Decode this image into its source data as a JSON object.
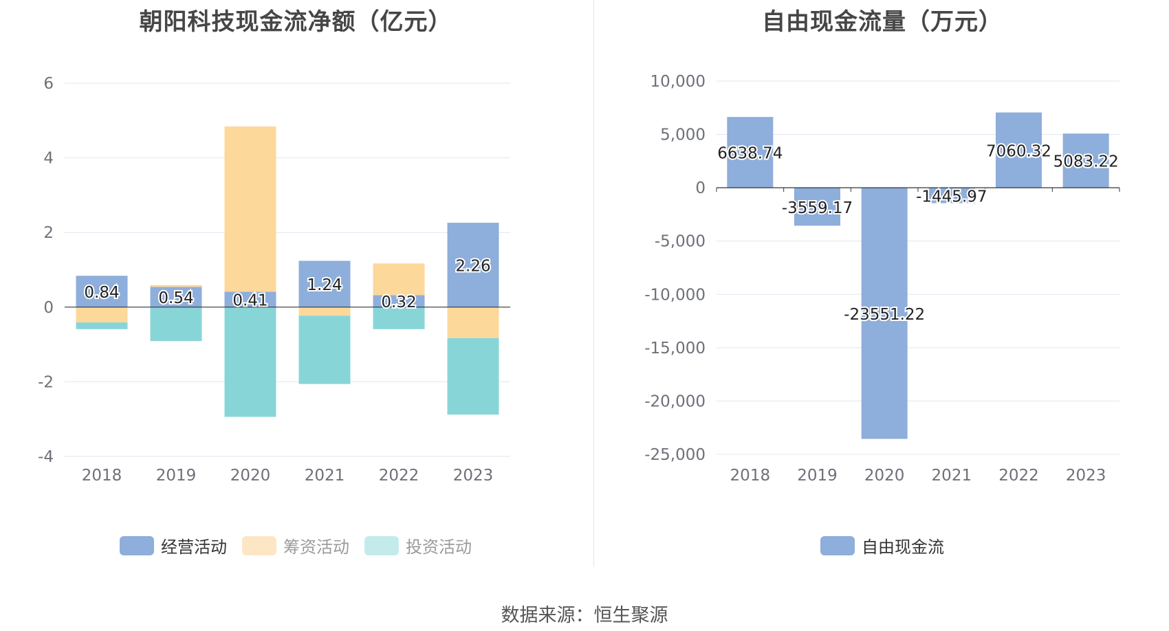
{
  "left": {
    "title": "朝阳科技现金流净额（亿元）",
    "legend": [
      {
        "label": "经营活动",
        "color": "#8eaedb"
      },
      {
        "label": "筹资活动",
        "color": "#fdd89b"
      },
      {
        "label": "投资活动",
        "color": "#88d5d8"
      }
    ]
  },
  "right": {
    "title": "自由现金流量（万元）",
    "legend": [
      {
        "label": "自由现金流",
        "color": "#8eaedb"
      }
    ]
  },
  "source": "数据来源：恒生聚源",
  "chart_data": [
    {
      "type": "bar",
      "stacked": true,
      "title": "朝阳科技现金流净额（亿元）",
      "categories": [
        "2018",
        "2019",
        "2020",
        "2021",
        "2022",
        "2023"
      ],
      "ylim": [
        -4,
        6
      ],
      "yticks": [
        "6",
        "4",
        "2",
        "0",
        "-2",
        "-4"
      ],
      "grid": true,
      "legend_position": "bottom",
      "series": [
        {
          "name": "经营活动",
          "color": "#8eaedb",
          "values": [
            0.84,
            0.54,
            0.41,
            1.24,
            0.32,
            2.26
          ],
          "labels": [
            "0.84",
            "0.54",
            "0.41",
            "1.24",
            "0.32",
            "2.26"
          ]
        },
        {
          "name": "筹资活动",
          "color": "#fdd89b",
          "values": [
            -0.41,
            0.05,
            4.43,
            -0.23,
            0.85,
            -0.83
          ]
        },
        {
          "name": "投资活动",
          "color": "#88d5d8",
          "values": [
            -0.18,
            -0.91,
            -2.94,
            -1.83,
            -0.59,
            -2.05
          ]
        }
      ]
    },
    {
      "type": "bar",
      "title": "自由现金流量（万元）",
      "categories": [
        "2018",
        "2019",
        "2020",
        "2021",
        "2022",
        "2023"
      ],
      "ylim": [
        -25000,
        10000
      ],
      "yticks": [
        "10,000",
        "5,000",
        "0",
        "-5,000",
        "-10,000",
        "-15,000",
        "-20,000",
        "-25,000"
      ],
      "grid": true,
      "legend_position": "bottom",
      "series": [
        {
          "name": "自由现金流",
          "color": "#8eaedb",
          "values": [
            6638.74,
            -3559.17,
            -23551.22,
            -1445.97,
            7060.32,
            5083.22
          ],
          "labels": [
            "6638.74",
            "-3559.17",
            "-23551.22",
            "-1445.97",
            "7060.32",
            "5083.22"
          ]
        }
      ]
    }
  ]
}
